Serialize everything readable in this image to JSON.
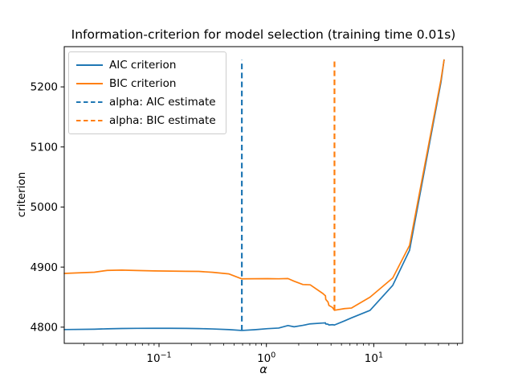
{
  "chart_data": {
    "type": "line",
    "title": "Information-criterion for model selection (training time 0.01s)",
    "xlabel": "α",
    "ylabel": "criterion",
    "x_scale": "log",
    "xlim": [
      0.0131,
      67.2
    ],
    "ylim": [
      4773,
      5267
    ],
    "grid": false,
    "yticks": [
      4800,
      4900,
      5000,
      5100,
      5200
    ],
    "xticks": [
      {
        "value": 0.1,
        "base": "10",
        "exp": "−1"
      },
      {
        "value": 1,
        "base": "10",
        "exp": "0"
      },
      {
        "value": 10,
        "base": "10",
        "exp": "1"
      }
    ],
    "x": [
      0.0131,
      0.025,
      0.033,
      0.045,
      0.062,
      0.09,
      0.127,
      0.179,
      0.235,
      0.316,
      0.449,
      0.5906,
      0.779,
      1.024,
      1.301,
      1.588,
      1.811,
      2.188,
      2.56,
      3.358,
      3.55,
      3.571,
      3.75,
      3.821,
      4.124,
      4.306,
      5.33,
      6.19,
      9.233,
      15.034,
      21.542,
      42.3,
      45.16
    ],
    "series": [
      {
        "name": "AIC criterion",
        "color": "#1f77b4",
        "linestyle": "solid",
        "values": [
          4796.0,
          4796.6,
          4797.3,
          4797.8,
          4798.0,
          4798.1,
          4798.1,
          4797.9,
          4797.6,
          4797.0,
          4795.9,
          4794.5,
          4795.8,
          4797.5,
          4798.5,
          4802.7,
          4800.6,
          4803.0,
          4805.5,
          4806.9,
          4807.1,
          4805.3,
          4805.0,
          4803.6,
          4804.1,
          4803.6,
          4810.4,
          4815.4,
          4828.0,
          4869.7,
          4928.0,
          5208.3,
          5244.8
        ]
      },
      {
        "name": "BIC criterion",
        "color": "#ff7f0e",
        "linestyle": "solid",
        "values": [
          4889.5,
          4891.5,
          4894.5,
          4895.0,
          4894.3,
          4893.7,
          4893.3,
          4893.0,
          4892.8,
          4891.3,
          4888.6,
          4880.4,
          4880.6,
          4880.8,
          4880.5,
          4880.9,
          4876.5,
          4871.0,
          4870.5,
          4856.0,
          4852.1,
          4846.2,
          4841.8,
          4836.3,
          4832.8,
          4828.1,
          4830.9,
          4831.8,
          4850.0,
          4881.9,
          4936.2,
          5212.3,
          5244.8
        ]
      }
    ],
    "vlines": [
      {
        "name": "alpha: AIC estimate",
        "x": 0.5906,
        "ymin": 4794.5,
        "ymax": 5244.8,
        "color": "#1f77b4",
        "linestyle": "dashed"
      },
      {
        "name": "alpha: BIC estimate",
        "x": 4.306,
        "ymin": 4828.1,
        "ymax": 5244.8,
        "color": "#ff7f0e",
        "linestyle": "dashed"
      }
    ],
    "legend": {
      "position": "upper left",
      "entries": [
        {
          "label": "AIC criterion",
          "color": "#1f77b4",
          "linestyle": "solid"
        },
        {
          "label": "BIC criterion",
          "color": "#ff7f0e",
          "linestyle": "solid"
        },
        {
          "label": "alpha: AIC estimate",
          "color": "#1f77b4",
          "linestyle": "dashed"
        },
        {
          "label": "alpha: BIC estimate",
          "color": "#ff7f0e",
          "linestyle": "dashed"
        }
      ]
    },
    "axis_color": "#000000",
    "background": "#ffffff"
  }
}
